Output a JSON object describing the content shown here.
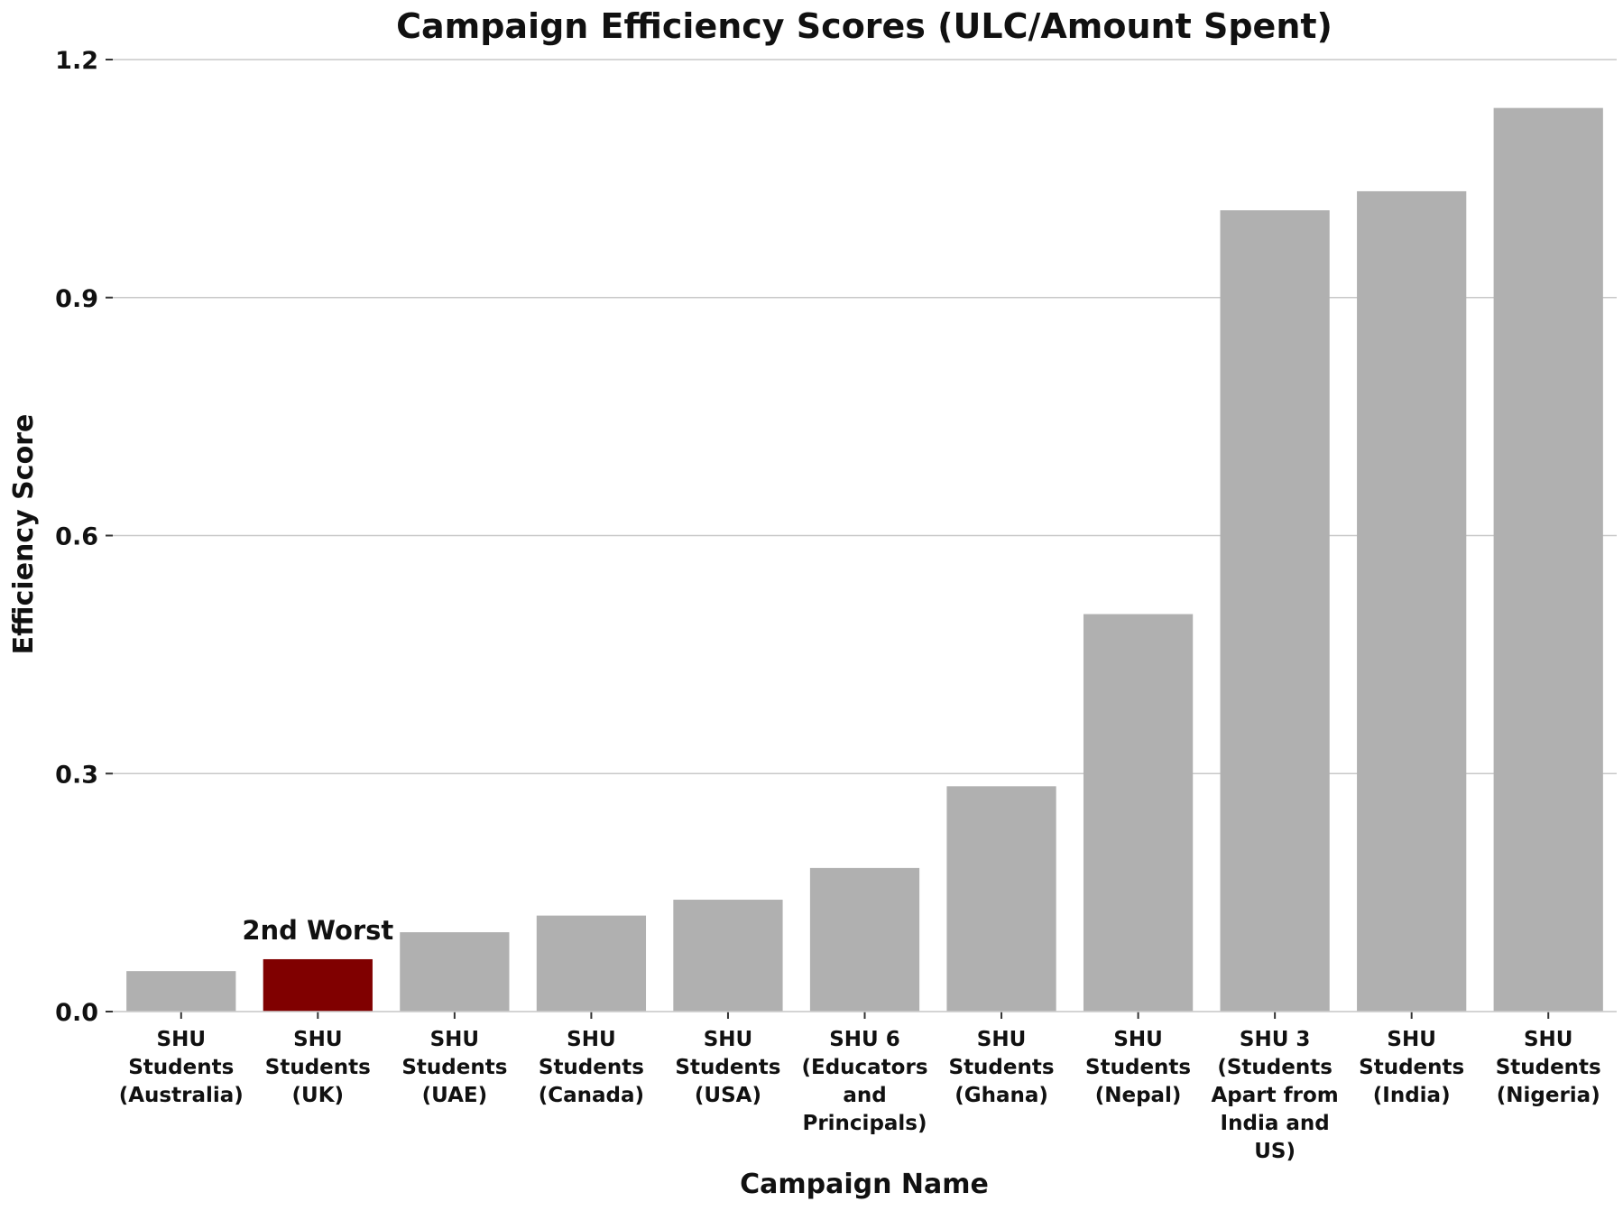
{
  "chart_data": {
    "type": "bar",
    "title": "Campaign Efficiency Scores (ULC/Amount Spent)",
    "xlabel": "Campaign Name",
    "ylabel": "Efficiency Score",
    "ylim": [
      0,
      1.2
    ],
    "yticks": [
      "0.0",
      "0.3",
      "0.6",
      "0.9",
      "1.2"
    ],
    "grid": "horizontal",
    "categories": [
      [
        "SHU",
        "Students",
        "(Australia)"
      ],
      [
        "SHU",
        "Students",
        "(UK)"
      ],
      [
        "SHU",
        "Students",
        "(UAE)"
      ],
      [
        "SHU",
        "Students",
        "(Canada)"
      ],
      [
        "SHU",
        "Students",
        "(USA)"
      ],
      [
        "SHU 6",
        "(Educators",
        "and",
        "Principals)"
      ],
      [
        "SHU",
        "Students",
        "(Ghana)"
      ],
      [
        "SHU",
        "Students",
        "(Nepal)"
      ],
      [
        "SHU 3",
        "(Students",
        "Apart from",
        "India and",
        "US)"
      ],
      [
        "SHU",
        "Students",
        "(India)"
      ],
      [
        "SHU",
        "Students",
        "(Nigeria)"
      ]
    ],
    "values": [
      0.051,
      0.066,
      0.1,
      0.121,
      0.141,
      0.181,
      0.284,
      0.501,
      1.01,
      1.034,
      1.139
    ],
    "highlight_index": 1,
    "highlight_color": "#800000",
    "bar_color": "#b0b0b0",
    "grid_color": "#c8c8c8",
    "annotation": {
      "text": "2nd Worst",
      "index": 1
    }
  }
}
